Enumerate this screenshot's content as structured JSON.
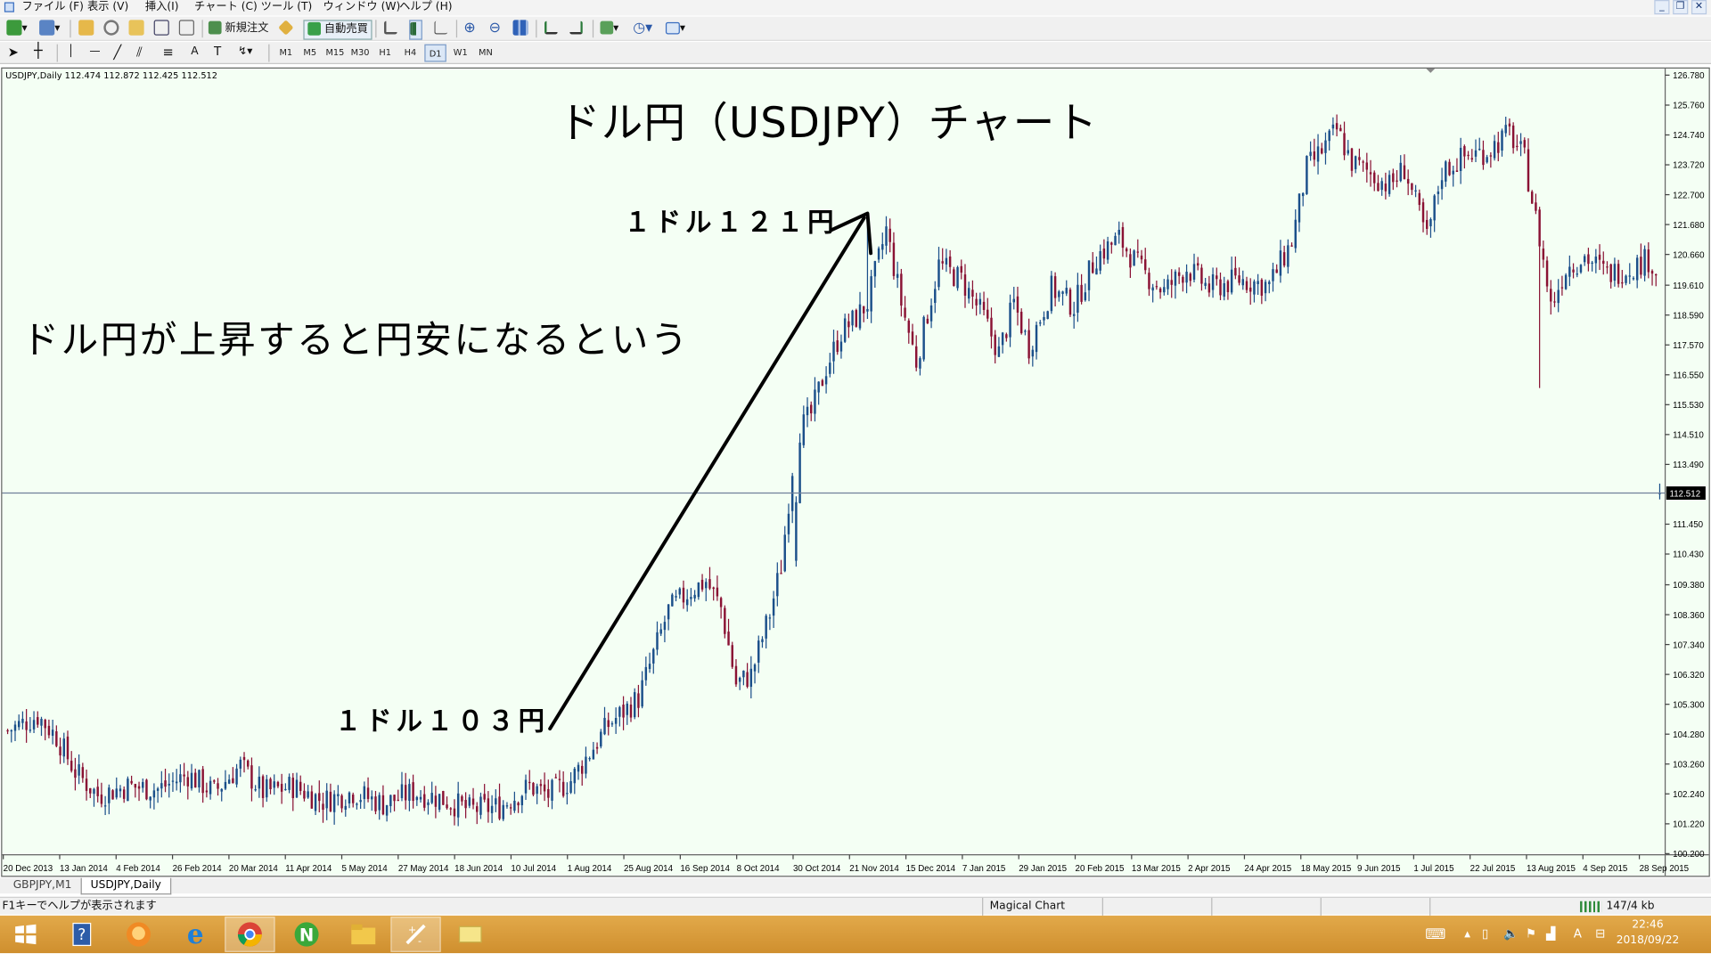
{
  "menu": {
    "items": [
      "ファイル (F)",
      "表示 (V)",
      "挿入(I)",
      "チャート (C)",
      "ツール (T)",
      "ウィンドウ (W)",
      "ヘルプ (H)"
    ],
    "window_controls": [
      "_",
      "❐",
      "✕"
    ]
  },
  "toolbar": {
    "new_order_label": "新規注文",
    "auto_trade_label": "自動売買",
    "timeframes": [
      "M1",
      "M5",
      "M15",
      "M30",
      "H1",
      "H4",
      "D1",
      "W1",
      "MN"
    ],
    "active_timeframe": "D1",
    "icons": [
      "new-chart-icon",
      "profiles-icon",
      "market-watch-icon",
      "navigator-icon",
      "data-window-icon",
      "terminal-icon",
      "tester-icon",
      "new-order-icon",
      "meta-editor-icon",
      "auto-trading-icon",
      "bar-chart-icon",
      "candlestick-icon",
      "line-chart-icon",
      "zoom-in-icon",
      "zoom-out-icon",
      "tile-windows-icon",
      "auto-scroll-icon",
      "chart-shift-icon",
      "indicators-icon",
      "periods-icon",
      "templates-icon",
      "cursor-icon",
      "crosshair-icon",
      "vertical-line-icon",
      "horizontal-line-icon",
      "trendline-icon",
      "equidistant-channel-icon",
      "fibonacci-icon",
      "text-icon",
      "text-label-icon",
      "arrows-icon"
    ]
  },
  "chart": {
    "symbol_label": "USDJPY,Daily  112.474 112.872 112.425 112.512",
    "current_price_label": "112.512",
    "annotations": {
      "title": "ドル円（USDJPY）チャート",
      "main_text": "ドル円が上昇すると円安になるという",
      "label_high": "１ドル１２１円",
      "label_low": "１ドル１０３円"
    },
    "colors": {
      "background": "#f4fff4",
      "candle_up": "#1b4f8a",
      "candle_down": "#8a1234",
      "price_line": "#6f7f9a"
    }
  },
  "chart_data": {
    "type": "candlestick",
    "symbol": "USDJPY",
    "timeframe": "Daily",
    "ylim": [
      100.2,
      126.78
    ],
    "y_ticks": [
      126.78,
      125.76,
      124.74,
      123.72,
      122.7,
      121.68,
      120.66,
      119.61,
      118.59,
      117.57,
      116.55,
      115.53,
      114.51,
      113.49,
      112.512,
      111.45,
      110.43,
      109.38,
      108.36,
      107.34,
      106.32,
      105.3,
      104.28,
      103.26,
      102.24,
      101.22,
      100.2
    ],
    "x_ticks": [
      "20 Dec 2013",
      "13 Jan 2014",
      "4 Feb 2014",
      "26 Feb 2014",
      "20 Mar 2014",
      "11 Apr 2014",
      "5 May 2014",
      "27 May 2014",
      "18 Jun 2014",
      "10 Jul 2014",
      "1 Aug 2014",
      "25 Aug 2014",
      "16 Sep 2014",
      "8 Oct 2014",
      "30 Oct 2014",
      "21 Nov 2014",
      "15 Dec 2014",
      "7 Jan 2015",
      "29 Jan 2015",
      "20 Feb 2015",
      "13 Mar 2015",
      "2 Apr 2015",
      "24 Apr 2015",
      "18 May 2015",
      "9 Jun 2015",
      "1 Jul 2015",
      "22 Jul 2015",
      "13 Aug 2015",
      "4 Sep 2015",
      "28 Sep 2015"
    ],
    "last": {
      "open": 112.474,
      "high": 112.872,
      "low": 112.425,
      "close": 112.512
    },
    "price_path": [
      [
        0,
        104.4
      ],
      [
        8,
        104.9
      ],
      [
        13,
        104.2
      ],
      [
        18,
        103.0
      ],
      [
        24,
        102.2
      ],
      [
        32,
        102.5
      ],
      [
        40,
        102.4
      ],
      [
        48,
        102.9
      ],
      [
        55,
        102.3
      ],
      [
        62,
        103.2
      ],
      [
        68,
        102.3
      ],
      [
        76,
        102.5
      ],
      [
        84,
        102.0
      ],
      [
        92,
        102.3
      ],
      [
        100,
        101.9
      ],
      [
        108,
        102.3
      ],
      [
        115,
        102.1
      ],
      [
        123,
        101.7
      ],
      [
        131,
        101.8
      ],
      [
        139,
        102.5
      ],
      [
        144,
        102.2
      ],
      [
        150,
        102.7
      ],
      [
        160,
        104.6
      ],
      [
        168,
        105.5
      ],
      [
        176,
        108.5
      ],
      [
        182,
        109.2
      ],
      [
        186,
        109.5
      ],
      [
        190,
        108.6
      ],
      [
        194,
        106.0
      ],
      [
        198,
        106.3
      ],
      [
        203,
        108.4
      ],
      [
        206,
        110.0
      ],
      [
        210,
        114.5
      ],
      [
        214,
        115.2
      ],
      [
        218,
        116.8
      ],
      [
        222,
        118.0
      ],
      [
        226,
        118.5
      ],
      [
        229,
        119.0
      ],
      [
        234,
        121.5
      ],
      [
        238,
        119.0
      ],
      [
        242,
        117.0
      ],
      [
        248,
        120.3
      ],
      [
        254,
        119.8
      ],
      [
        260,
        118.5
      ],
      [
        264,
        117.3
      ],
      [
        268,
        119.0
      ],
      [
        272,
        117.5
      ],
      [
        278,
        119.5
      ],
      [
        284,
        118.9
      ],
      [
        290,
        120.6
      ],
      [
        296,
        121.2
      ],
      [
        302,
        120.1
      ],
      [
        308,
        119.4
      ],
      [
        314,
        120.2
      ],
      [
        320,
        119.5
      ],
      [
        328,
        119.8
      ],
      [
        336,
        119.6
      ],
      [
        342,
        121.1
      ],
      [
        346,
        123.6
      ],
      [
        350,
        124.2
      ],
      [
        354,
        124.9
      ],
      [
        358,
        123.8
      ],
      [
        362,
        123.5
      ],
      [
        368,
        123.0
      ],
      [
        372,
        123.6
      ],
      [
        378,
        121.2
      ],
      [
        382,
        123.5
      ],
      [
        388,
        124.0
      ],
      [
        394,
        124.2
      ],
      [
        400,
        124.8
      ],
      [
        404,
        123.9
      ],
      [
        408,
        121.2
      ],
      [
        411,
        118.9
      ],
      [
        415,
        120.2
      ],
      [
        420,
        120.6
      ],
      [
        426,
        120.0
      ],
      [
        432,
        120.2
      ],
      [
        437,
        120.5
      ],
      [
        440,
        119.9
      ]
    ]
  },
  "bottom_tabs": [
    "GBPJPY,M1",
    "USDJPY,Daily"
  ],
  "active_tab": "USDJPY,Daily",
  "status": {
    "help_text": "F1キーでヘルプが表示されます",
    "profile": "Magical Chart",
    "connection": "147/4 kb"
  },
  "taskbar": {
    "apps": [
      "windows-start-icon",
      "help-icon",
      "firefox-icon",
      "internet-explorer-icon",
      "chrome-icon",
      "app-n-icon",
      "file-explorer-icon",
      "metatrader-icon",
      "sticky-notes-icon"
    ],
    "active_app_index": 7,
    "time": "22:46",
    "date": "2018/09/22",
    "ime": "A"
  }
}
